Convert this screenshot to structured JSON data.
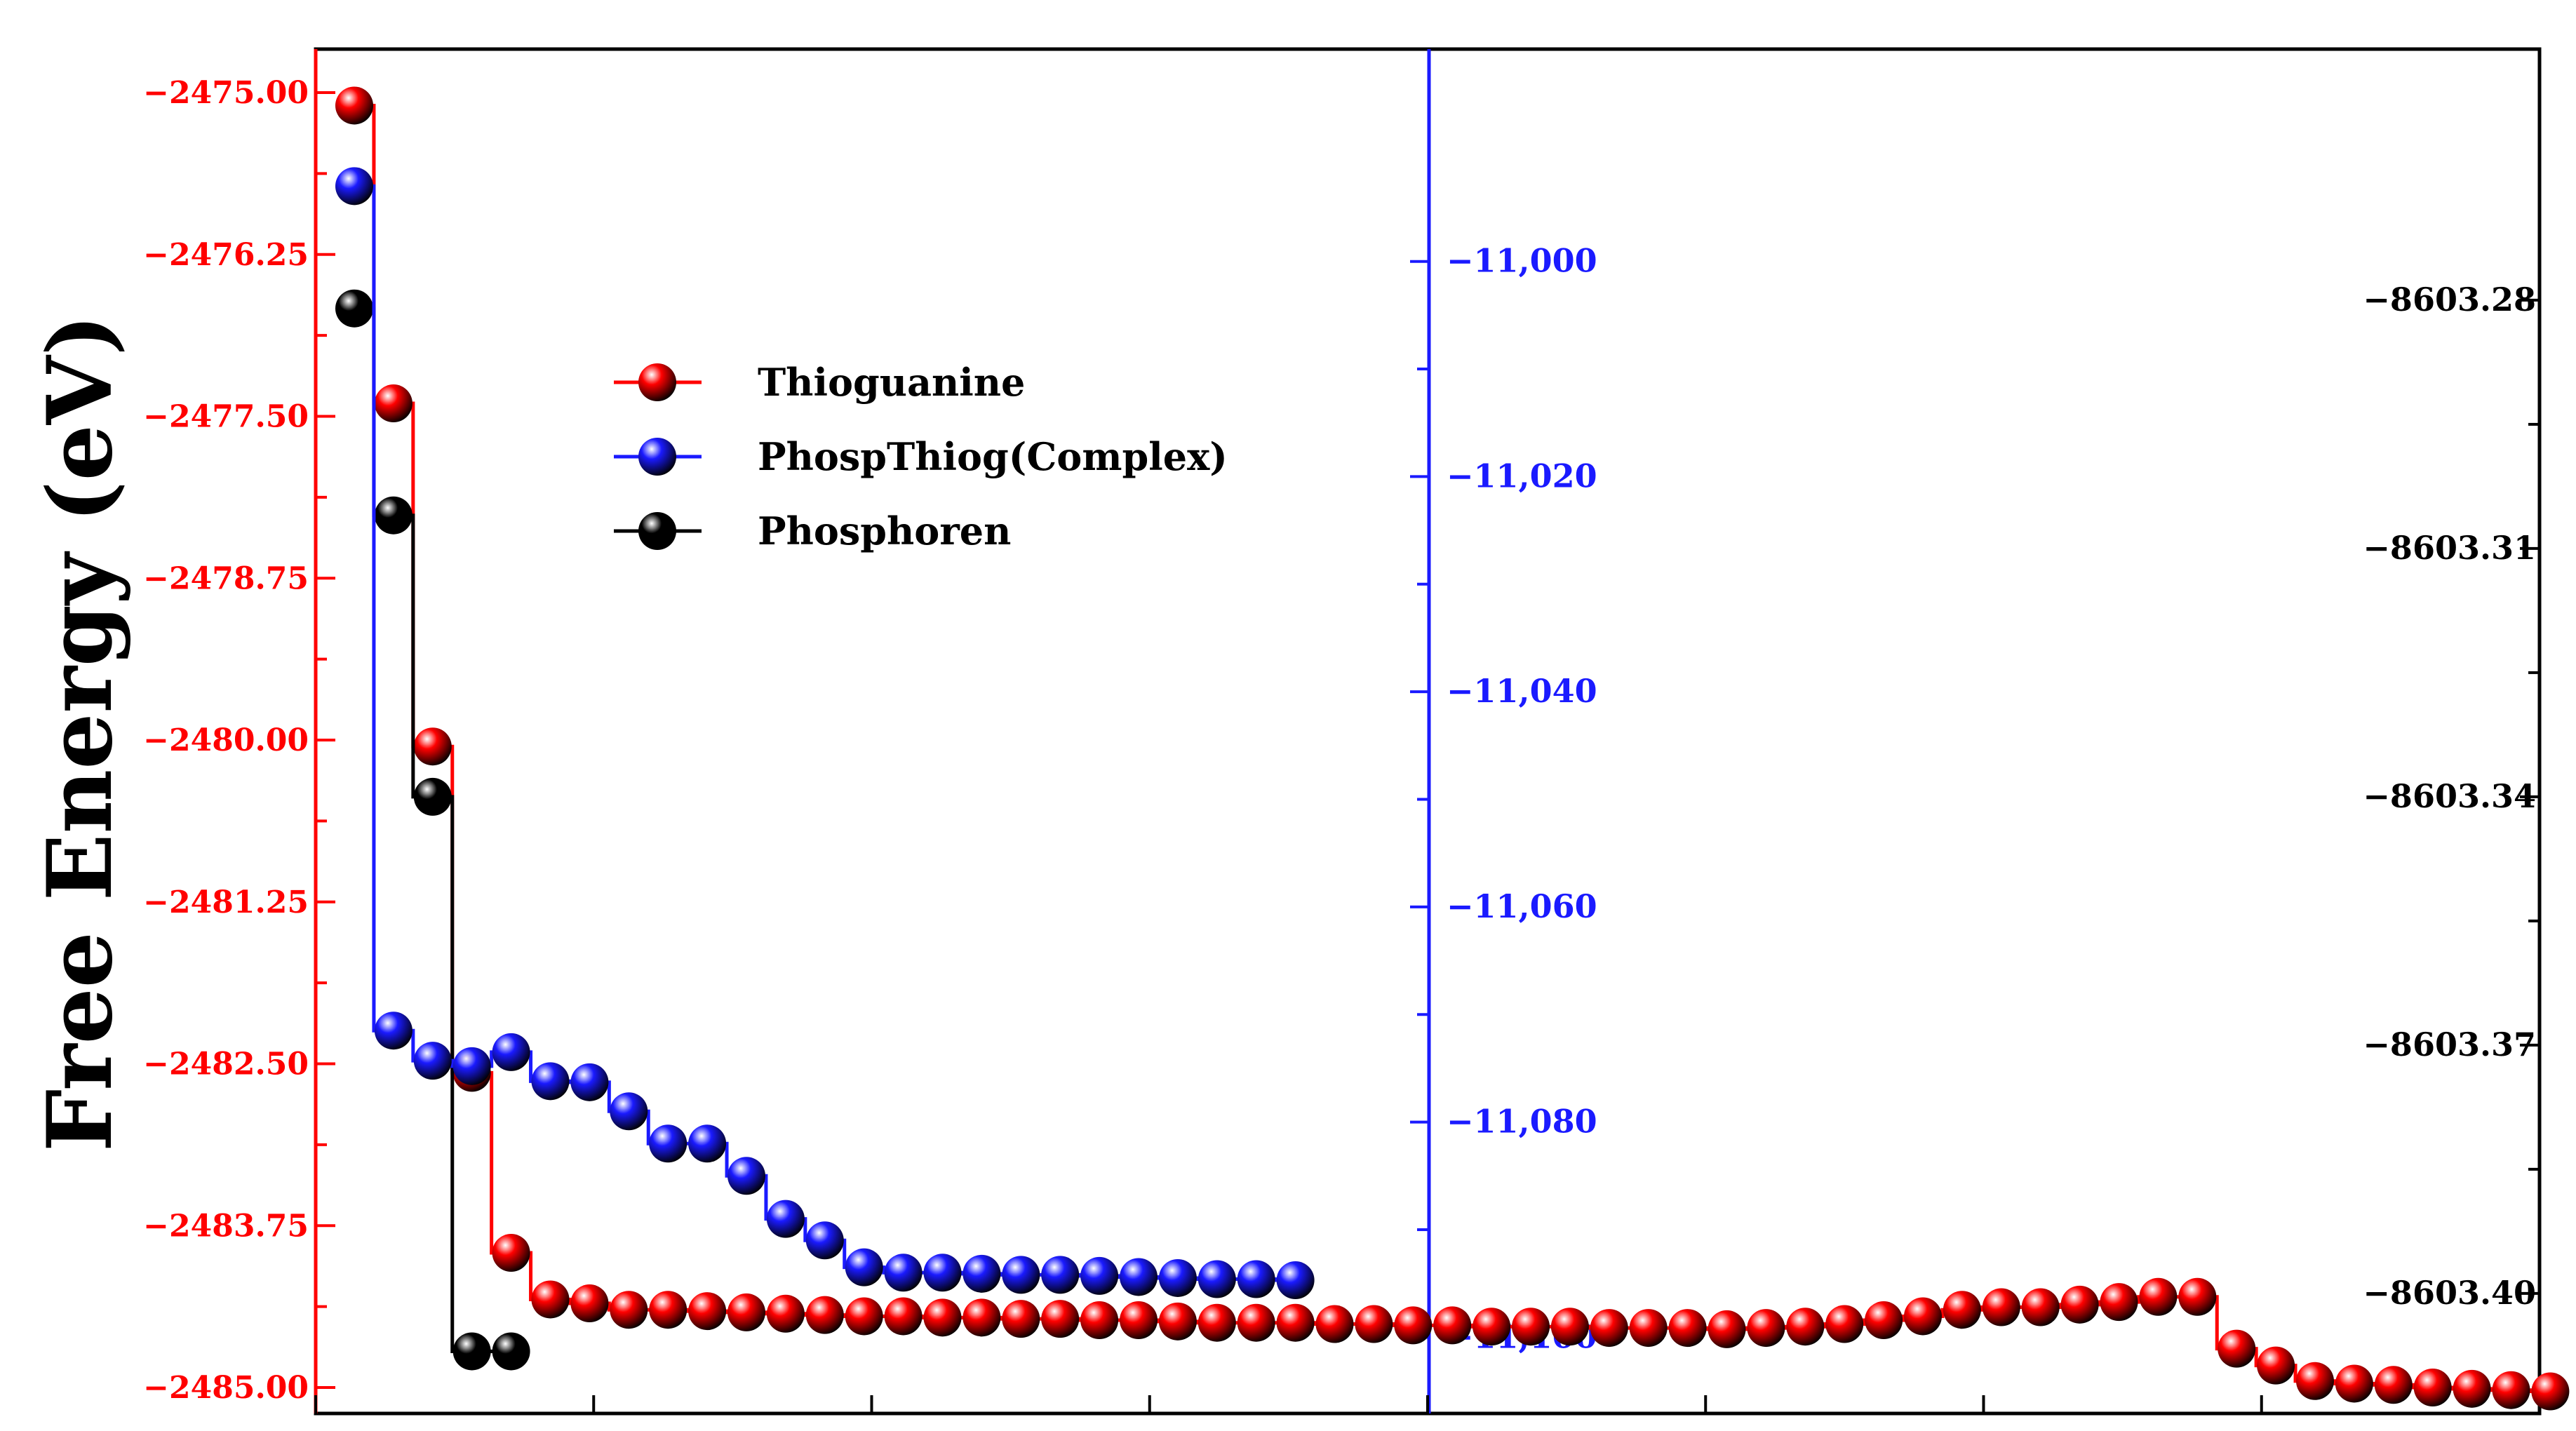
{
  "chart_data": {
    "type": "line",
    "step": true,
    "ylabel": "Free Energy (eV)",
    "xlabel": "",
    "grid": false,
    "legend_position": "top-left",
    "x_tick_count": 9,
    "series": [
      {
        "name": "Thioguanine",
        "color": "#ff0000",
        "axis": "left",
        "x": [
          1,
          2,
          3,
          4,
          5,
          6,
          7,
          8,
          9,
          10,
          11,
          12,
          13,
          14,
          15,
          16,
          17,
          18,
          19,
          20,
          21,
          22,
          23,
          24,
          25,
          26,
          27,
          28,
          29,
          30,
          31,
          32,
          33,
          34,
          35,
          36,
          37,
          38,
          39,
          40,
          41,
          42,
          43,
          44,
          45,
          46,
          47,
          48,
          49,
          50,
          51,
          52,
          53,
          54,
          55,
          56,
          57
        ],
        "values": [
          -2475.1,
          -2477.4,
          -2480.05,
          -2482.57,
          -2483.96,
          -2484.32,
          -2484.35,
          -2484.4,
          -2484.4,
          -2484.41,
          -2484.42,
          -2484.43,
          -2484.44,
          -2484.45,
          -2484.45,
          -2484.46,
          -2484.46,
          -2484.47,
          -2484.47,
          -2484.48,
          -2484.48,
          -2484.49,
          -2484.5,
          -2484.5,
          -2484.5,
          -2484.51,
          -2484.51,
          -2484.52,
          -2484.52,
          -2484.53,
          -2484.53,
          -2484.53,
          -2484.54,
          -2484.54,
          -2484.54,
          -2484.55,
          -2484.54,
          -2484.53,
          -2484.51,
          -2484.48,
          -2484.45,
          -2484.4,
          -2484.38,
          -2484.38,
          -2484.36,
          -2484.34,
          -2484.3,
          -2484.3,
          -2484.7,
          -2484.83,
          -2484.95,
          -2484.97,
          -2484.98,
          -2485.0,
          -2485.01,
          -2485.02,
          -2485.03
        ],
        "ylim": [
          -2485.0,
          -2475.0
        ],
        "yticks": [
          "−2475.00",
          "−2476.25",
          "−2477.50",
          "−2478.75",
          "−2480.00",
          "−2481.25",
          "−2482.50",
          "−2483.75",
          "−2485.00"
        ]
      },
      {
        "name": "PhospThiog(Complex)",
        "color": "#1a1aff",
        "axis": "middle",
        "x": [
          1,
          2,
          3,
          4,
          5,
          6,
          7,
          8,
          9,
          10,
          11,
          12,
          13,
          14,
          15,
          16,
          17,
          18,
          19,
          20,
          21,
          22,
          23,
          24,
          25
        ],
        "values": [
          -10993,
          -11071.5,
          -11074.3,
          -11074.8,
          -11073.5,
          -11076.2,
          -11076.3,
          -11079,
          -11082,
          -11082,
          -11085,
          -11089,
          -11091,
          -11093.5,
          -11094,
          -11094,
          -11094.1,
          -11094.2,
          -11094.2,
          -11094.3,
          -11094.4,
          -11094.5,
          -11094.6,
          -11094.6,
          -11094.7
        ],
        "ylim": [
          -11103.5,
          -10992
        ],
        "yticks": [
          "−11,000",
          "−11,020",
          "−11,040",
          "−11,060",
          "−11,080",
          "−11,100"
        ]
      },
      {
        "name": "Phosphoren",
        "color": "#000000",
        "axis": "right",
        "x": [
          1,
          2,
          3,
          4,
          5
        ],
        "values": [
          -8603.281,
          -8603.306,
          -8603.34,
          -8603.407,
          -8603.407
        ],
        "ylim": [
          -8603.4073,
          -8603.2656
        ],
        "yticks": [
          "−8603.28",
          "−8603.31",
          "−8603.34",
          "−8603.37",
          "−8603.40"
        ]
      }
    ]
  }
}
